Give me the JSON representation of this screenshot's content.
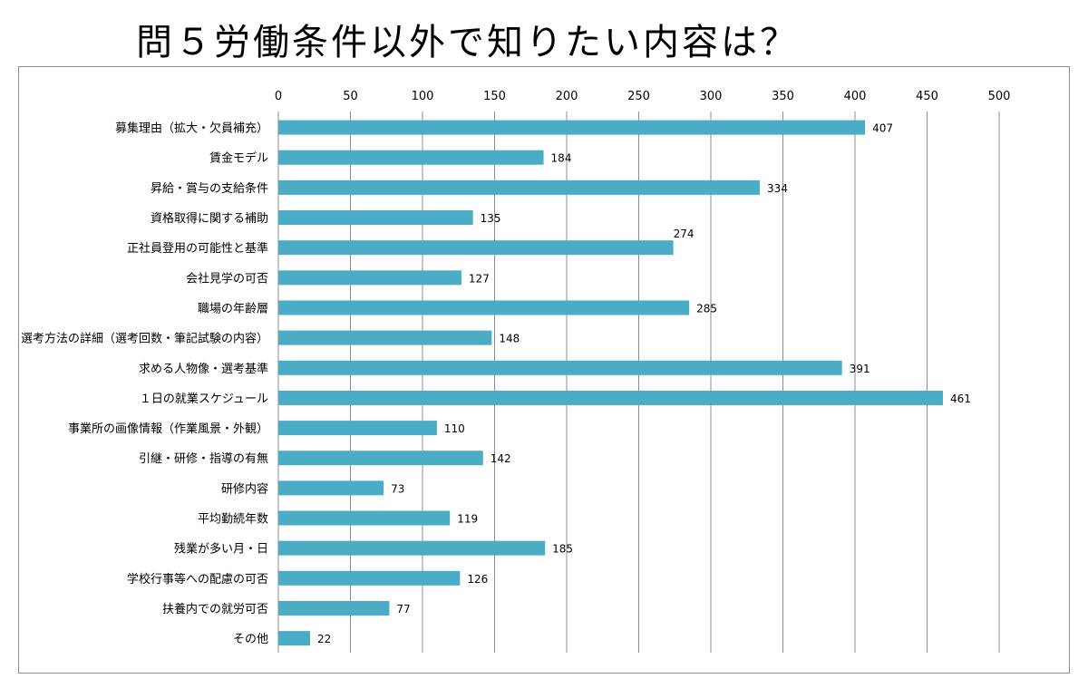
{
  "title": "問５労働条件以外で知りたい内容は？",
  "chart_data": {
    "type": "bar",
    "orientation": "horizontal",
    "title": "問５労働条件以外で知りたい内容は？",
    "xlabel": "",
    "ylabel": "",
    "xlim": [
      0,
      500
    ],
    "xticks": [
      "0",
      "50",
      "100",
      "150",
      "200",
      "250",
      "300",
      "350",
      "400",
      "450",
      "500"
    ],
    "grid": true,
    "bar_color": "#4bacc6",
    "categories": [
      "募集理由（拡大・欠員補充）",
      "賃金モデル",
      "昇給・賞与の支給条件",
      "資格取得に関する補助",
      "正社員登用の可能性と基準",
      "会社見学の可否",
      "職場の年齢層",
      "選考方法の詳細（選考回数・筆記試験の内容）",
      "求める人物像・選考基準",
      "１日の就業スケジュール",
      "事業所の画像情報（作業風景・外観）",
      "引継・研修・指導の有無",
      "研修内容",
      "平均勤続年数",
      "残業が多い月・日",
      "学校行事等への配慮の可否",
      "扶養内での就労可否",
      "その他"
    ],
    "values": [
      407,
      184,
      334,
      135,
      274,
      127,
      285,
      148,
      391,
      461,
      110,
      142,
      73,
      119,
      185,
      126,
      77,
      22
    ],
    "labels": [
      "407",
      "184",
      "334",
      "135",
      "274",
      "127",
      "285",
      "148",
      "391",
      "461",
      "110",
      "142",
      "73",
      "119",
      "185",
      "126",
      "77",
      "22"
    ]
  }
}
